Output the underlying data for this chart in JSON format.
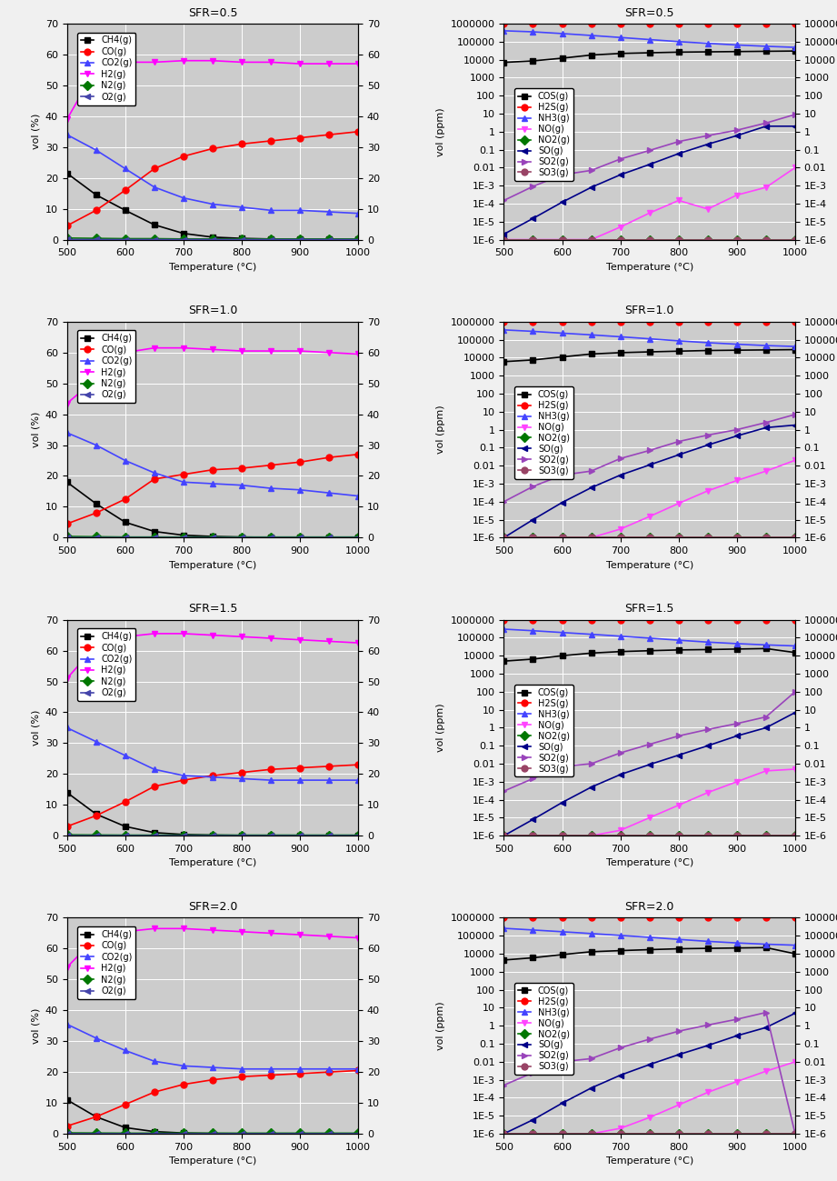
{
  "temperatures": [
    500,
    550,
    600,
    650,
    700,
    750,
    800,
    850,
    900,
    950,
    1000
  ],
  "sfr_keys": [
    "0.5",
    "1.0",
    "1.5",
    "2.0"
  ],
  "left_data": {
    "0.5": {
      "CH4": [
        21.5,
        14.5,
        9.5,
        4.8,
        2.0,
        0.8,
        0.4,
        0.2,
        0.1,
        0.05,
        0.02
      ],
      "CO": [
        4.5,
        9.5,
        16.0,
        23.0,
        27.0,
        29.5,
        31.0,
        32.0,
        33.0,
        34.0,
        35.0
      ],
      "CO2": [
        34.0,
        29.0,
        23.0,
        17.0,
        13.5,
        11.5,
        10.5,
        9.5,
        9.5,
        9.0,
        8.5
      ],
      "H2": [
        39.0,
        55.5,
        57.5,
        57.5,
        58.0,
        58.0,
        57.5,
        57.5,
        57.0,
        57.0,
        57.0
      ],
      "N2": [
        0.5,
        0.4,
        0.3,
        0.3,
        0.2,
        0.2,
        0.2,
        0.2,
        0.2,
        0.2,
        0.2
      ],
      "O2": [
        0.05,
        0.02,
        0.01,
        0.01,
        0.01,
        0.01,
        0.01,
        0.01,
        0.01,
        0.01,
        0.01
      ]
    },
    "1.0": {
      "CH4": [
        18.0,
        11.0,
        5.0,
        2.0,
        0.8,
        0.4,
        0.2,
        0.1,
        0.05,
        0.02,
        0.01
      ],
      "CO": [
        4.5,
        8.0,
        12.5,
        19.0,
        20.5,
        22.0,
        22.5,
        23.5,
        24.5,
        26.0,
        27.0
      ],
      "CO2": [
        34.0,
        30.0,
        25.0,
        21.0,
        18.0,
        17.5,
        17.0,
        16.0,
        15.5,
        14.5,
        13.5
      ],
      "H2": [
        43.5,
        51.5,
        60.0,
        61.5,
        61.5,
        61.0,
        60.5,
        60.5,
        60.5,
        60.0,
        59.5
      ],
      "N2": [
        0.4,
        0.3,
        0.2,
        0.2,
        0.2,
        0.2,
        0.2,
        0.2,
        0.2,
        0.2,
        0.2
      ],
      "O2": [
        0.03,
        0.02,
        0.01,
        0.01,
        0.01,
        0.01,
        0.01,
        0.01,
        0.01,
        0.01,
        0.01
      ]
    },
    "1.5": {
      "CH4": [
        14.0,
        7.0,
        3.0,
        1.0,
        0.4,
        0.2,
        0.1,
        0.05,
        0.02,
        0.01,
        0.005
      ],
      "CO": [
        3.0,
        6.5,
        11.0,
        16.0,
        18.0,
        19.5,
        20.5,
        21.5,
        22.0,
        22.5,
        23.0
      ],
      "CO2": [
        35.0,
        30.5,
        26.0,
        21.5,
        19.5,
        19.0,
        18.5,
        18.0,
        18.0,
        18.0,
        18.0
      ],
      "H2": [
        51.0,
        61.5,
        64.5,
        65.5,
        65.5,
        65.0,
        64.5,
        64.0,
        63.5,
        63.0,
        62.5
      ],
      "N2": [
        0.3,
        0.25,
        0.2,
        0.2,
        0.2,
        0.2,
        0.2,
        0.2,
        0.2,
        0.2,
        0.2
      ],
      "O2": [
        0.02,
        0.01,
        0.01,
        0.01,
        0.01,
        0.01,
        0.01,
        0.01,
        0.01,
        0.01,
        0.01
      ]
    },
    "2.0": {
      "CH4": [
        11.0,
        5.5,
        2.0,
        0.7,
        0.25,
        0.1,
        0.05,
        0.02,
        0.01,
        0.005,
        0.002
      ],
      "CO": [
        2.5,
        5.5,
        9.5,
        13.5,
        16.0,
        17.5,
        18.5,
        19.0,
        19.5,
        20.0,
        20.5
      ],
      "CO2": [
        35.5,
        31.0,
        27.0,
        23.5,
        22.0,
        21.5,
        21.0,
        21.0,
        21.0,
        21.0,
        21.0
      ],
      "H2": [
        54.0,
        63.5,
        65.5,
        66.5,
        66.5,
        66.0,
        65.5,
        65.0,
        64.5,
        64.0,
        63.5
      ],
      "N2": [
        0.3,
        0.25,
        0.2,
        0.2,
        0.2,
        0.2,
        0.2,
        0.2,
        0.2,
        0.2,
        0.2
      ],
      "O2": [
        0.02,
        0.01,
        0.01,
        0.01,
        0.01,
        0.01,
        0.01,
        0.01,
        0.01,
        0.01,
        0.01
      ]
    }
  },
  "right_data": {
    "0.5": {
      "COS": [
        7000,
        8500,
        12000,
        18000,
        22000,
        24000,
        26000,
        27000,
        28000,
        29000,
        30000
      ],
      "H2S": [
        1000000,
        1000000,
        1000000,
        1000000,
        1000000,
        1000000,
        1000000,
        1000000,
        1000000,
        1000000,
        1000000
      ],
      "NH3": [
        400000,
        350000,
        280000,
        220000,
        170000,
        130000,
        100000,
        80000,
        65000,
        55000,
        48000
      ],
      "NO": [
        1e-06,
        1e-06,
        1e-06,
        1e-06,
        5e-06,
        3e-05,
        0.00015,
        5e-05,
        0.0003,
        0.0008,
        0.01
      ],
      "NO2": [
        1e-06,
        1e-06,
        1e-06,
        1e-06,
        1e-06,
        1e-06,
        1e-06,
        1e-06,
        1e-06,
        1e-06,
        1e-06
      ],
      "SO": [
        2e-06,
        1.5e-05,
        0.00012,
        0.0008,
        0.004,
        0.015,
        0.06,
        0.2,
        0.6,
        2.0,
        2.0
      ],
      "SO2": [
        0.00015,
        0.0009,
        0.004,
        0.007,
        0.03,
        0.09,
        0.28,
        0.6,
        1.2,
        3.0,
        9.0
      ],
      "SO3": [
        1e-06,
        1e-06,
        1e-06,
        1e-06,
        1e-06,
        1e-06,
        1e-06,
        1e-06,
        1e-06,
        1e-06,
        1e-06
      ]
    },
    "1.0": {
      "COS": [
        6000,
        7500,
        11000,
        16000,
        19000,
        21000,
        23000,
        25000,
        26000,
        27000,
        28000
      ],
      "H2S": [
        1000000,
        1000000,
        1000000,
        1000000,
        1000000,
        1000000,
        1000000,
        1000000,
        1000000,
        1000000,
        1000000
      ],
      "NH3": [
        350000,
        290000,
        230000,
        185000,
        145000,
        112000,
        86000,
        68000,
        56000,
        47000,
        42000
      ],
      "NO": [
        1e-06,
        1e-06,
        1e-06,
        1e-06,
        3e-06,
        1.5e-05,
        8e-05,
        0.0004,
        0.0015,
        0.005,
        0.02
      ],
      "NO2": [
        1e-06,
        1e-06,
        1e-06,
        1e-06,
        1e-06,
        1e-06,
        1e-06,
        1e-06,
        1e-06,
        1e-06,
        1e-06
      ],
      "SO": [
        1e-06,
        1e-05,
        9e-05,
        0.0006,
        0.003,
        0.011,
        0.04,
        0.14,
        0.45,
        1.3,
        1.8
      ],
      "SO2": [
        0.0001,
        0.0007,
        0.003,
        0.005,
        0.025,
        0.07,
        0.22,
        0.5,
        1.0,
        2.5,
        7.0
      ],
      "SO3": [
        1e-06,
        1e-06,
        1e-06,
        1e-06,
        1e-06,
        1e-06,
        1e-06,
        1e-06,
        1e-06,
        1e-06,
        1e-06
      ]
    },
    "1.5": {
      "COS": [
        5000,
        6500,
        10000,
        14000,
        17000,
        19000,
        21000,
        22000,
        23500,
        25000,
        15000
      ],
      "H2S": [
        1000000,
        1000000,
        1000000,
        1000000,
        1000000,
        1000000,
        1000000,
        1000000,
        1000000,
        1000000,
        1000000
      ],
      "NH3": [
        300000,
        245000,
        195000,
        155000,
        122000,
        95000,
        73000,
        57000,
        47000,
        40000,
        35000
      ],
      "NO": [
        1e-06,
        1e-06,
        1e-06,
        1e-06,
        2e-06,
        1e-05,
        5e-05,
        0.00025,
        0.001,
        0.004,
        0.005
      ],
      "NO2": [
        1e-06,
        1e-06,
        1e-06,
        1e-06,
        1e-06,
        1e-06,
        1e-06,
        1e-06,
        1e-06,
        1e-06,
        1e-06
      ],
      "SO": [
        1e-06,
        8e-06,
        7e-05,
        0.0005,
        0.0025,
        0.009,
        0.03,
        0.1,
        0.35,
        1.0,
        7.0
      ],
      "SO2": [
        0.0003,
        0.0015,
        0.007,
        0.01,
        0.04,
        0.12,
        0.35,
        0.8,
        1.7,
        4.0,
        100.0
      ],
      "SO3": [
        1e-06,
        1e-06,
        1e-06,
        1e-06,
        1e-06,
        1e-06,
        1e-06,
        1e-06,
        1e-06,
        1e-06,
        1e-06
      ]
    },
    "2.0": {
      "COS": [
        4500,
        6000,
        9000,
        13000,
        15000,
        17000,
        19000,
        20000,
        21000,
        22000,
        10000
      ],
      "H2S": [
        1000000,
        1000000,
        1000000,
        1000000,
        1000000,
        1000000,
        1000000,
        1000000,
        1000000,
        1000000,
        1000000
      ],
      "NH3": [
        260000,
        210000,
        168000,
        133000,
        105000,
        82000,
        63000,
        49000,
        40000,
        34000,
        30000
      ],
      "NO": [
        1e-06,
        1e-06,
        1e-06,
        1e-06,
        2e-06,
        8e-06,
        4e-05,
        0.0002,
        0.0008,
        0.003,
        0.01
      ],
      "NO2": [
        1e-06,
        1e-06,
        1e-06,
        1e-06,
        1e-06,
        1e-06,
        1e-06,
        1e-06,
        1e-06,
        1e-06,
        1e-06
      ],
      "SO": [
        1e-06,
        6e-06,
        5e-05,
        0.00035,
        0.0018,
        0.007,
        0.025,
        0.08,
        0.28,
        0.8,
        5.0
      ],
      "SO2": [
        0.0005,
        0.0025,
        0.01,
        0.015,
        0.06,
        0.18,
        0.5,
        1.1,
        2.3,
        5.5,
        1e-06
      ],
      "SO3": [
        1e-06,
        1e-06,
        1e-06,
        1e-06,
        1e-06,
        1e-06,
        1e-06,
        1e-06,
        1e-06,
        1e-06,
        1e-06
      ]
    }
  },
  "left_species": [
    "CH4",
    "CO",
    "CO2",
    "H2",
    "N2",
    "O2"
  ],
  "left_labels": [
    "CH4(g)",
    "CO(g)",
    "CO2(g)",
    "H2(g)",
    "N2(g)",
    "O2(g)"
  ],
  "left_colors": [
    "#000000",
    "#ff0000",
    "#4444ff",
    "#ff00ff",
    "#007700",
    "#4444aa"
  ],
  "left_markers": [
    "s",
    "o",
    "^",
    "v",
    "D",
    "<"
  ],
  "right_species": [
    "COS",
    "H2S",
    "NH3",
    "NO",
    "NO2",
    "SO",
    "SO2",
    "SO3"
  ],
  "right_labels": [
    "COS(g)",
    "H2S(g)",
    "NH3(g)",
    "NO(g)",
    "NO2(g)",
    "SO(g)",
    "SO2(g)",
    "SO3(g)"
  ],
  "right_colors": [
    "#000000",
    "#ff0000",
    "#4444ff",
    "#ff44ff",
    "#007700",
    "#000088",
    "#9944bb",
    "#994466"
  ],
  "right_markers": [
    "s",
    "o",
    "^",
    "v",
    "D",
    "<",
    ">",
    "o"
  ],
  "yticks_left": [
    0,
    10,
    20,
    30,
    40,
    50,
    60,
    70
  ],
  "xticks": [
    500,
    600,
    700,
    800,
    900,
    1000
  ],
  "log_ticks": [
    1e-06,
    1e-05,
    0.0001,
    0.001,
    0.01,
    0.1,
    1.0,
    10.0,
    100.0,
    1000.0,
    10000.0,
    100000.0,
    1000000.0
  ],
  "log_labels": [
    "1E-6",
    "1E-5",
    "1E-4",
    "1E-3",
    "0.01",
    "0.1",
    "1",
    "10",
    "100",
    "1000",
    "10000",
    "100000",
    "1000000"
  ],
  "ylabel_left": "vol (%)",
  "ylabel_right": "vol (ppm)",
  "xlabel": "Temperature (°C)",
  "bg_color": "#cccccc",
  "grid_color": "#ffffff",
  "title_fontsize": 9,
  "axis_fontsize": 8,
  "legend_fontsize": 7,
  "marker_size": 5,
  "line_width": 1.2
}
